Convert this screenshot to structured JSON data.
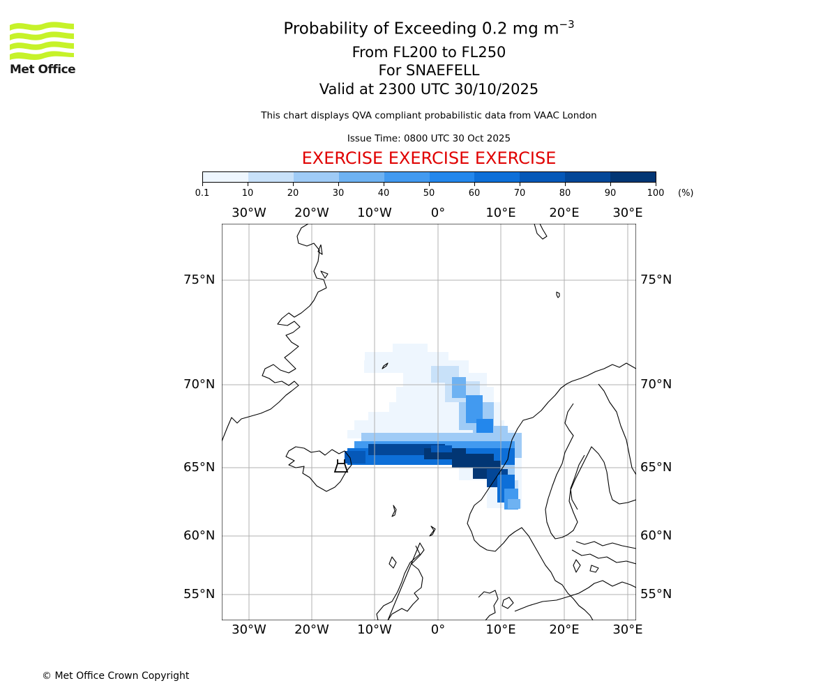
{
  "header": {
    "logo_text": "Met Office",
    "title_main": "Probability of Exceeding 0.2 mg m",
    "title_sup": "−3",
    "line2": "From FL200 to FL250",
    "line3": "For SNAEFELL",
    "line4": "Valid at 2300 UTC 30/10/2025",
    "note": "This chart displays QVA compliant probabilistic data from VAAC London",
    "issue_time": "Issue Time: 0800 UTC 30 Oct 2025",
    "exercise": "EXERCISE EXERCISE EXERCISE"
  },
  "colorbar": {
    "labels": [
      "0.1",
      "10",
      "20",
      "30",
      "40",
      "50",
      "60",
      "70",
      "80",
      "90",
      "100"
    ],
    "unit": "(%)",
    "colors": [
      "#eef6fe",
      "#c8e1f9",
      "#9fcbf6",
      "#6eb2f2",
      "#429af0",
      "#2387ec",
      "#0d6fd8",
      "#0558b8",
      "#034798",
      "#023674"
    ]
  },
  "map": {
    "lon_labels": [
      "30°W",
      "20°W",
      "10°W",
      "0°",
      "10°E",
      "20°E",
      "30°E"
    ],
    "lat_labels": [
      "75°N",
      "70°N",
      "65°N",
      "60°N",
      "55°N"
    ],
    "lon_values": [
      -30,
      -20,
      -10,
      0,
      10,
      20,
      30
    ],
    "lat_values": [
      75,
      70,
      65,
      60,
      55
    ],
    "volcano": "SNAEFELL"
  },
  "footer": {
    "copyright": "© Met Office Crown Copyright"
  }
}
